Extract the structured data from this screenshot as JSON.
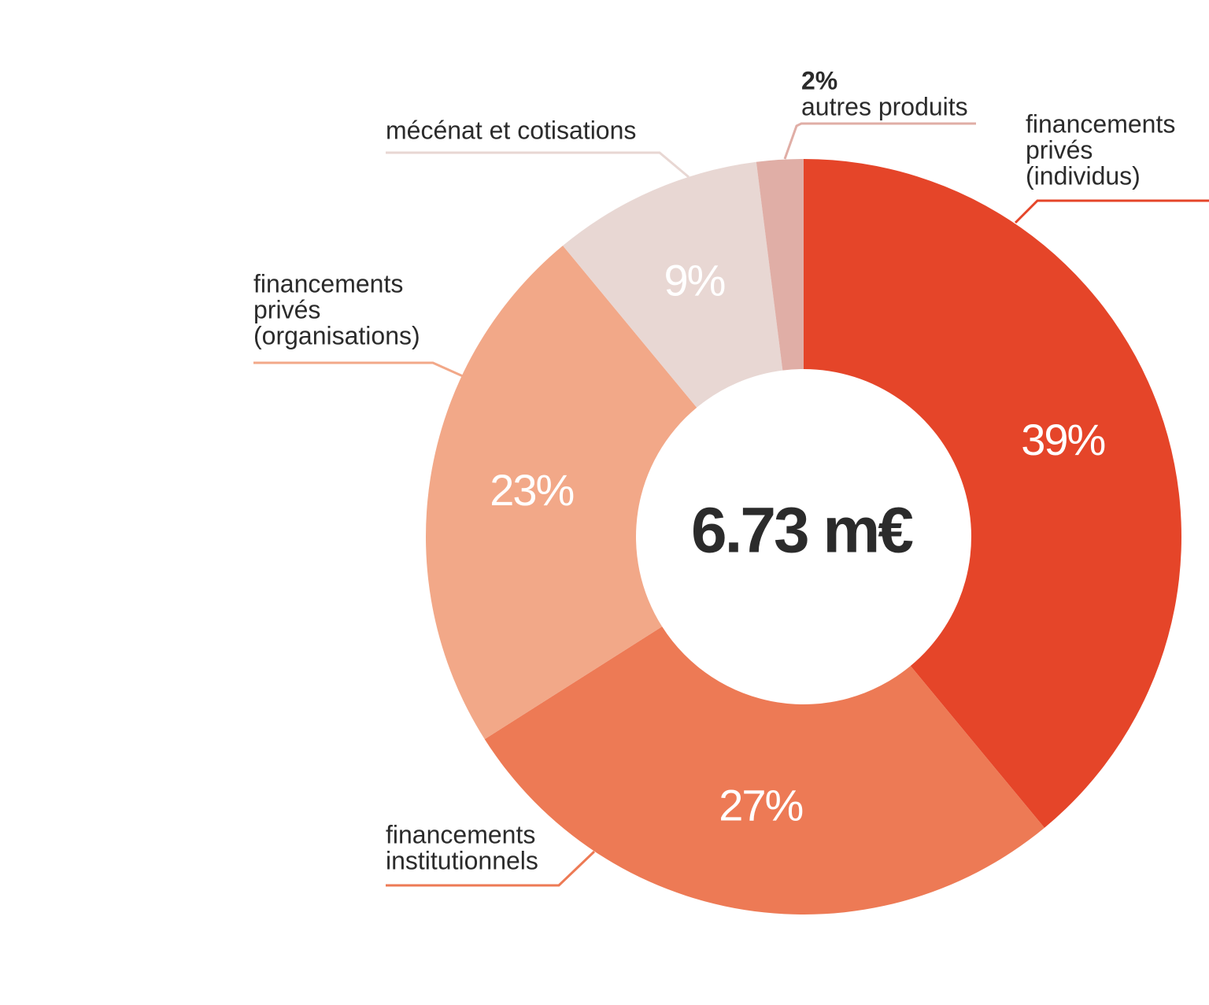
{
  "chart_data": {
    "type": "donut",
    "center_label": "6.73 m€",
    "categories": [
      [
        "financements",
        "privés",
        "(individus)"
      ],
      [
        "financements",
        "institutionnels"
      ],
      [
        "financements",
        "privés",
        "(organisations)"
      ],
      [
        "mécénat et cotisations"
      ],
      [
        "autres produits"
      ]
    ],
    "values": [
      39,
      27,
      23,
      9,
      2
    ],
    "value_labels": [
      "39%",
      "27%",
      "23%",
      "9%",
      "2%"
    ],
    "colors": [
      "#e54529",
      "#ed7a55",
      "#f2a888",
      "#e8d7d3",
      "#e0aea6"
    ]
  }
}
